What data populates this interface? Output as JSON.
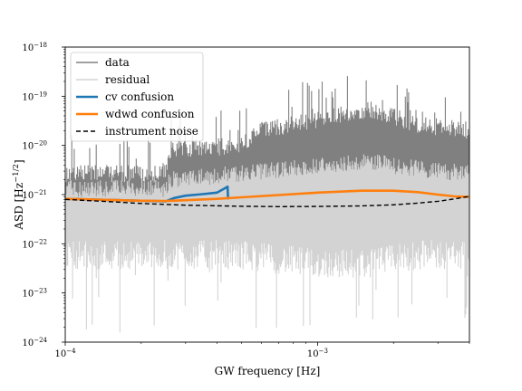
{
  "chart_data": {
    "type": "line",
    "title": "",
    "xlabel": "GW frequency [Hz]",
    "ylabel_main": "ASD [Hz",
    "ylabel_sup": "−1/2",
    "ylabel_close": "]",
    "x_scale": "log",
    "y_scale": "log",
    "xlim": [
      0.0001,
      0.004
    ],
    "ylim": [
      1e-24,
      1e-18
    ],
    "grid": false,
    "legend_position": "top-left",
    "x_ticks": [
      {
        "value": 0.0001,
        "base": "10",
        "exp": "−4"
      },
      {
        "value": 0.001,
        "base": "10",
        "exp": "−3"
      }
    ],
    "y_ticks": [
      {
        "value": 1e-24,
        "base": "10",
        "exp": "−24"
      },
      {
        "value": 1e-23,
        "base": "10",
        "exp": "−23"
      },
      {
        "value": 1e-22,
        "base": "10",
        "exp": "−22"
      },
      {
        "value": 1e-21,
        "base": "10",
        "exp": "−21"
      },
      {
        "value": 1e-20,
        "base": "10",
        "exp": "−20"
      },
      {
        "value": 1e-19,
        "base": "10",
        "exp": "−19"
      },
      {
        "value": 1e-18,
        "base": "10",
        "exp": "−18"
      }
    ],
    "series": [
      {
        "name": "data",
        "color": "#808080",
        "style": "noisy band",
        "band": {
          "x": [
            0.0001,
            0.00025,
            0.00026,
            0.0005,
            0.0006,
            0.001,
            0.0016,
            0.0025,
            0.004
          ],
          "upper": [
            4e-21,
            4e-21,
            1.2e-20,
            1.5e-20,
            3e-20,
            5e-20,
            8e-20,
            4e-20,
            3e-20
          ],
          "lower": [
            3e-22,
            3e-22,
            3e-22,
            5e-22,
            5e-22,
            7e-22,
            9e-22,
            6e-22,
            6e-22
          ],
          "spike_max": [
            2e-20,
            2e-20,
            5e-20,
            6e-20,
            1.2e-19,
            2.5e-19,
            3e-19,
            1.5e-19,
            1e-19
          ]
        }
      },
      {
        "name": "residual",
        "color": "#d3d3d3",
        "style": "noisy band",
        "band": {
          "x": [
            0.0001,
            0.00025,
            0.00026,
            0.0005,
            0.001,
            0.0016,
            0.0025,
            0.004
          ],
          "upper": [
            2e-21,
            2e-21,
            3e-21,
            4e-21,
            6e-21,
            7e-21,
            5e-21,
            4e-21
          ],
          "lower": [
            3e-23,
            3e-23,
            3e-23,
            3e-23,
            2e-23,
            2e-23,
            3e-23,
            3e-23
          ],
          "spike_min": [
            1.5e-24,
            1.5e-24,
            2e-24,
            2e-24,
            1.5e-24,
            1.5e-24,
            2e-24,
            2e-24
          ]
        }
      },
      {
        "name": "cv confusion",
        "color": "#1f77b4",
        "x": [
          0.0001,
          0.00015,
          0.0002,
          0.00025,
          0.00027,
          0.0003,
          0.00035,
          0.0004,
          0.00043,
          0.00044,
          0.000442
        ],
        "y": [
          8.2e-22,
          7.8e-22,
          7.5e-22,
          7.3e-22,
          8.5e-22,
          9.5e-22,
          1.02e-21,
          1.1e-21,
          1.35e-21,
          1.45e-21,
          8e-22
        ]
      },
      {
        "name": "wdwd confusion",
        "color": "#ff7f0e",
        "x": [
          0.0001,
          0.00015,
          0.0002,
          0.00025,
          0.0003,
          0.0004,
          0.0005,
          0.0007,
          0.001,
          0.0015,
          0.002,
          0.0025,
          0.003,
          0.0035,
          0.004
        ],
        "y": [
          8.2e-22,
          7.8e-22,
          7.5e-22,
          7.4e-22,
          7.7e-22,
          8.2e-22,
          8.8e-22,
          9.8e-22,
          1.1e-21,
          1.2e-21,
          1.2e-21,
          1.12e-21,
          1e-21,
          9.2e-22,
          9e-22
        ]
      },
      {
        "name": "instrument noise",
        "color": "#000000",
        "x": [
          0.0001,
          0.00015,
          0.0002,
          0.0003,
          0.0005,
          0.0007,
          0.001,
          0.0015,
          0.002,
          0.0025,
          0.003,
          0.0035,
          0.004
        ],
        "y": [
          8e-22,
          7.2e-22,
          6.6e-22,
          6.1e-22,
          5.8e-22,
          5.7e-22,
          5.75e-22,
          5.9e-22,
          6.2e-22,
          6.7e-22,
          7.3e-22,
          8.2e-22,
          9.2e-22
        ]
      }
    ]
  }
}
